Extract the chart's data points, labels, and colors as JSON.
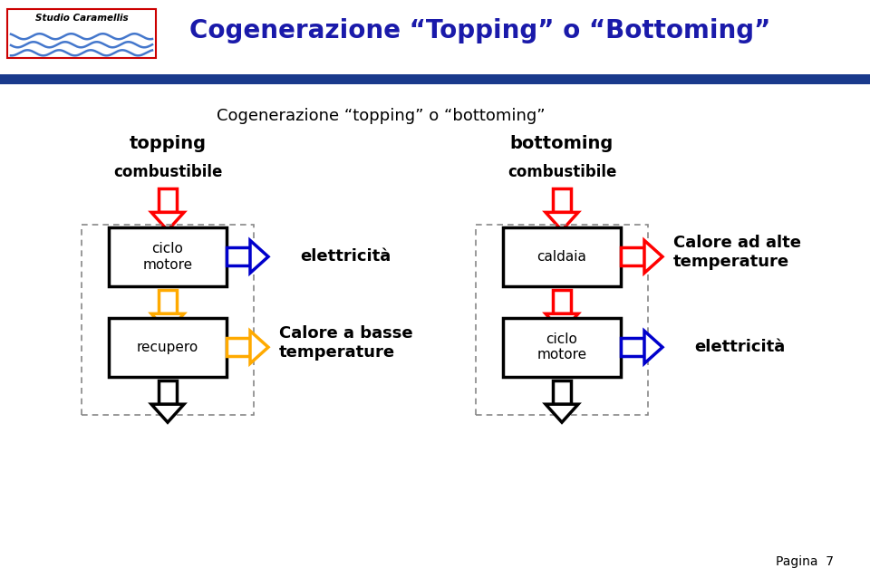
{
  "title_header": "Cogenerazione “Topping” o “Bottoming”",
  "subtitle": "Cogenerazione “topping” o “bottoming”",
  "header_bg": "#1a3a8c",
  "bg_color": "#ffffff",
  "title_color": "#1a1aaa",
  "pagina": "Pagina  7",
  "topping_label": "topping",
  "bottoming_label": "bottoming",
  "combustibile_label": "combustibile",
  "ciclo_motore_label": "ciclo\nmotore",
  "caldaia_label": "caldaia",
  "recupero_label": "recupero",
  "elettricita_label": "elettricità",
  "calore_alte_label": "Calore ad alte\ntemperature",
  "calore_basse_label": "Calore a basse\ntemperature",
  "elettricita2_label": "elettricità",
  "red": "#ff0000",
  "blue": "#0000cc",
  "yellow": "#ffaa00",
  "black": "#000000",
  "gray": "#888888"
}
